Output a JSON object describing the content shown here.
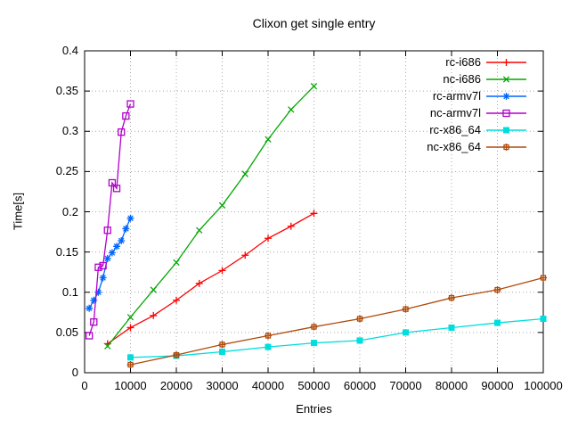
{
  "chart_data": {
    "type": "line",
    "title": "Clixon get single entry",
    "xlabel": "Entries",
    "ylabel": "Time[s]",
    "xlim": [
      0,
      100000
    ],
    "ylim": [
      0,
      0.4
    ],
    "grid": true,
    "legend_position": "top-right-inside",
    "x_ticks": [
      0,
      10000,
      20000,
      30000,
      40000,
      50000,
      60000,
      70000,
      80000,
      90000,
      100000
    ],
    "x_tick_labels": [
      "0",
      "10000",
      "20000",
      "30000",
      "40000",
      "50000",
      "60000",
      "70000",
      "80000",
      "90000",
      "100000"
    ],
    "y_ticks": [
      0,
      0.05,
      0.1,
      0.15,
      0.2,
      0.25,
      0.3,
      0.35,
      0.4
    ],
    "y_tick_labels": [
      "0",
      "0.05",
      "0.1",
      "0.15",
      "0.2",
      "0.25",
      "0.3",
      "0.35",
      "0.4"
    ],
    "colors": {
      "background": "#ffffff",
      "border": "#000000",
      "grid": "#a8a8a8",
      "text": "#000000"
    },
    "series": [
      {
        "name": "rc-i686",
        "color": "#ff0000",
        "marker": "plus",
        "x": [
          5000,
          10000,
          15000,
          20000,
          25000,
          30000,
          35000,
          40000,
          45000,
          50000
        ],
        "y": [
          0.036,
          0.056,
          0.071,
          0.09,
          0.111,
          0.127,
          0.146,
          0.167,
          0.182,
          0.198
        ]
      },
      {
        "name": "nc-i686",
        "color": "#00a800",
        "marker": "cross",
        "x": [
          5000,
          10000,
          15000,
          20000,
          25000,
          30000,
          35000,
          40000,
          45000,
          50000
        ],
        "y": [
          0.033,
          0.069,
          0.103,
          0.137,
          0.177,
          0.208,
          0.247,
          0.29,
          0.327,
          0.356
        ]
      },
      {
        "name": "rc-armv7l",
        "color": "#0066ff",
        "marker": "asterisk",
        "x": [
          1000,
          2000,
          3000,
          4000,
          5000,
          6000,
          7000,
          8000,
          9000,
          10000
        ],
        "y": [
          0.08,
          0.09,
          0.1,
          0.118,
          0.142,
          0.149,
          0.157,
          0.164,
          0.179,
          0.192
        ]
      },
      {
        "name": "nc-armv7l",
        "color": "#b200cc",
        "marker": "open-square",
        "x": [
          1000,
          2000,
          3000,
          4000,
          5000,
          6000,
          7000,
          8000,
          9000,
          10000
        ],
        "y": [
          0.046,
          0.063,
          0.131,
          0.133,
          0.177,
          0.236,
          0.229,
          0.299,
          0.319,
          0.334
        ]
      },
      {
        "name": "rc-x86_64",
        "color": "#00dddd",
        "marker": "filled-square",
        "x": [
          10000,
          20000,
          30000,
          40000,
          50000,
          60000,
          70000,
          80000,
          90000,
          100000
        ],
        "y": [
          0.019,
          0.021,
          0.026,
          0.032,
          0.037,
          0.04,
          0.05,
          0.056,
          0.062,
          0.067
        ]
      },
      {
        "name": "nc-x86_64",
        "color": "#b04a0a",
        "marker": "boxed-plus",
        "x": [
          10000,
          20000,
          30000,
          40000,
          50000,
          60000,
          70000,
          80000,
          90000,
          100000
        ],
        "y": [
          0.01,
          0.022,
          0.035,
          0.046,
          0.057,
          0.067,
          0.079,
          0.093,
          0.103,
          0.118
        ]
      }
    ]
  }
}
